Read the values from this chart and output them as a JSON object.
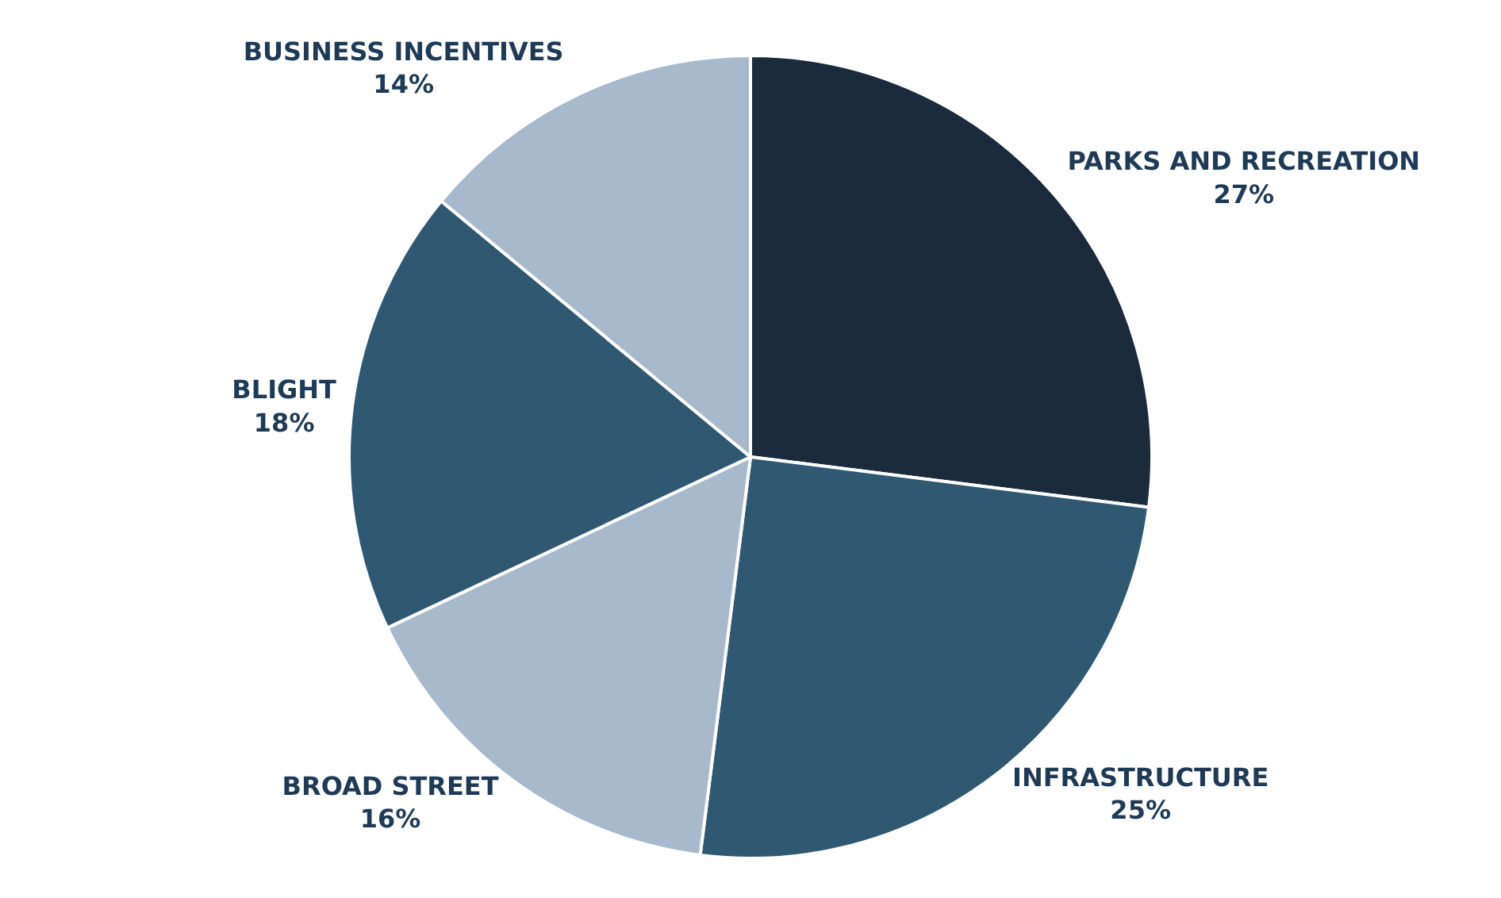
{
  "chart_data": {
    "type": "pie",
    "categories": [
      "PARKS AND RECREATION",
      "INFRASTRUCTURE",
      "BROAD STREET",
      "BLIGHT",
      "BUSINESS INCENTIVES"
    ],
    "values": [
      27,
      25,
      16,
      18,
      14
    ],
    "value_labels": [
      "27%",
      "25%",
      "16%",
      "18%",
      "14%"
    ],
    "colors": [
      "#1c2b3c",
      "#2f5872",
      "#a7b9cb",
      "#2f5872",
      "#a7b9cb"
    ],
    "legend": false
  }
}
